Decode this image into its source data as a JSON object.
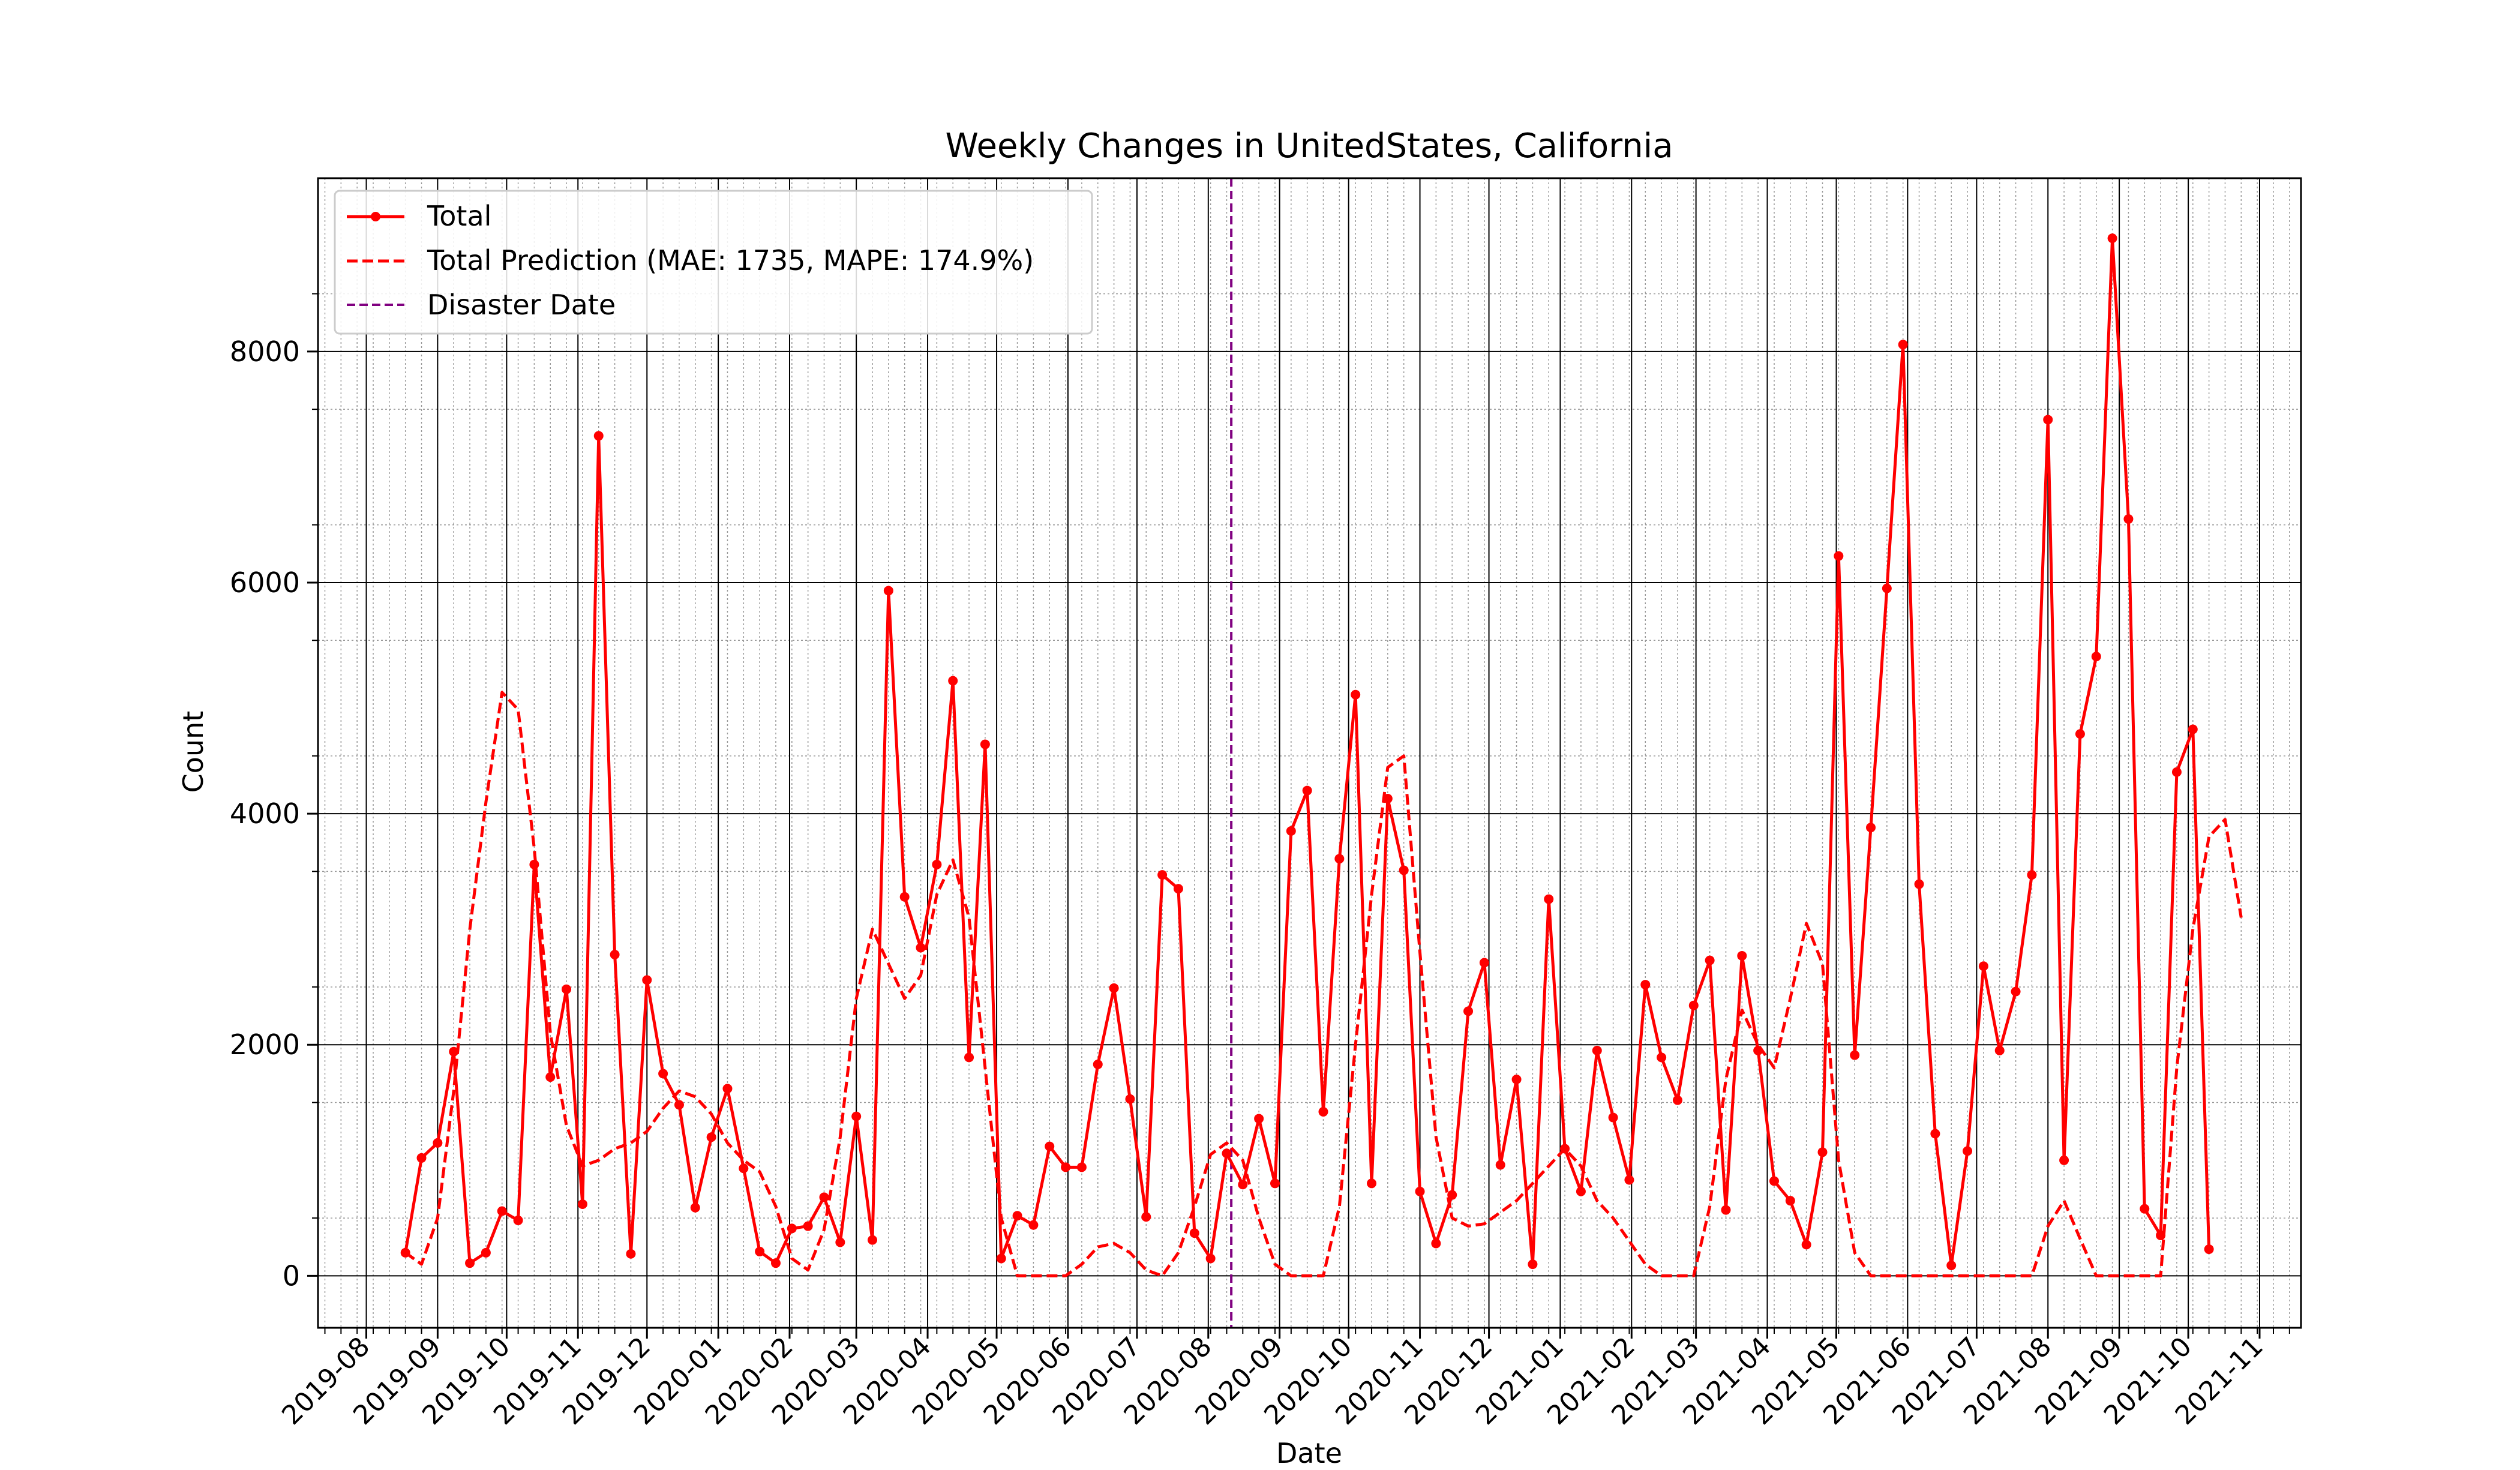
{
  "chart_data": {
    "type": "line",
    "title": "Weekly Changes in UnitedStates, California",
    "xlabel": "Date",
    "ylabel": "Count",
    "ylim": [
      -450,
      9500
    ],
    "xlim": [
      "2019-07-11",
      "2021-11-19"
    ],
    "grid": true,
    "legend_position": "upper-left",
    "legend": [
      "Total",
      "Total Prediction (MAE: 1735, MAPE: 174.9%)",
      "Disaster Date"
    ],
    "x_ticks": [
      "2019-08",
      "2019-09",
      "2019-10",
      "2019-11",
      "2019-12",
      "2020-01",
      "2020-02",
      "2020-03",
      "2020-04",
      "2020-05",
      "2020-06",
      "2020-07",
      "2020-08",
      "2020-09",
      "2020-10",
      "2020-11",
      "2020-12",
      "2021-01",
      "2021-02",
      "2021-03",
      "2021-04",
      "2021-05",
      "2021-06",
      "2021-07",
      "2021-08",
      "2021-09",
      "2021-10",
      "2021-11"
    ],
    "y_ticks": [
      0,
      2000,
      4000,
      6000,
      8000
    ],
    "disaster_date": "2020-08-11",
    "colors": {
      "total": "#ff0000",
      "prediction": "#ff0000",
      "disaster": "#800080"
    },
    "series": [
      {
        "name": "Total",
        "start_date": "2019-08-18",
        "step_days": 7,
        "values": [
          200,
          1020,
          1150,
          1940,
          110,
          200,
          560,
          480,
          3560,
          1720,
          2480,
          620,
          7270,
          2780,
          190,
          2560,
          1750,
          1480,
          590,
          1200,
          1620,
          930,
          210,
          110,
          410,
          430,
          680,
          290,
          1380,
          310,
          5930,
          3280,
          2840,
          3560,
          5150,
          1890,
          4600,
          150,
          520,
          440,
          1120,
          940,
          940,
          1830,
          2490,
          1530,
          510,
          3470,
          3350,
          370,
          150,
          1060,
          790,
          1360,
          800,
          3850,
          4200,
          1420,
          3610,
          5030,
          800,
          4130,
          3510,
          730,
          280,
          700,
          2290,
          2710,
          960,
          1700,
          100,
          3260,
          1100,
          730,
          1950,
          1370,
          830,
          2520,
          1890,
          1520,
          2340,
          2730,
          570,
          2770,
          1950,
          820,
          650,
          270,
          1070,
          6230,
          1910,
          3880,
          5950,
          8060,
          3390,
          1230,
          90,
          1080,
          2680,
          1950,
          2460,
          3470,
          7410,
          1000,
          4690,
          5360,
          8980,
          6550,
          580,
          350,
          4360,
          4730,
          230
        ]
      },
      {
        "name": "Total Prediction (MAE: 1735, MAPE: 174.9%)",
        "start_date": "2019-08-18",
        "step_days": 7,
        "values": [
          200,
          100,
          500,
          1600,
          3000,
          4100,
          5050,
          4900,
          3700,
          2100,
          1300,
          950,
          1000,
          1100,
          1150,
          1250,
          1450,
          1600,
          1550,
          1400,
          1150,
          1000,
          900,
          600,
          150,
          50,
          400,
          1200,
          2400,
          3000,
          2700,
          2400,
          2600,
          3300,
          3600,
          3100,
          1800,
          500,
          0,
          0,
          0,
          0,
          100,
          250,
          280,
          200,
          50,
          0,
          200,
          600,
          1050,
          1150,
          1000,
          500,
          100,
          0,
          0,
          0,
          600,
          2000,
          3300,
          4400,
          4500,
          2800,
          1200,
          500,
          430,
          450,
          550,
          650,
          800,
          950,
          1100,
          950,
          650,
          500,
          300,
          100,
          0,
          0,
          0,
          600,
          1700,
          2300,
          2000,
          1800,
          2400,
          3050,
          2700,
          1000,
          200,
          0,
          0,
          0,
          0,
          0,
          0,
          0,
          0,
          0,
          0,
          0,
          430,
          650,
          320,
          0,
          0,
          0,
          0,
          0,
          1800,
          3000,
          3800,
          3950,
          3100
        ]
      }
    ]
  }
}
